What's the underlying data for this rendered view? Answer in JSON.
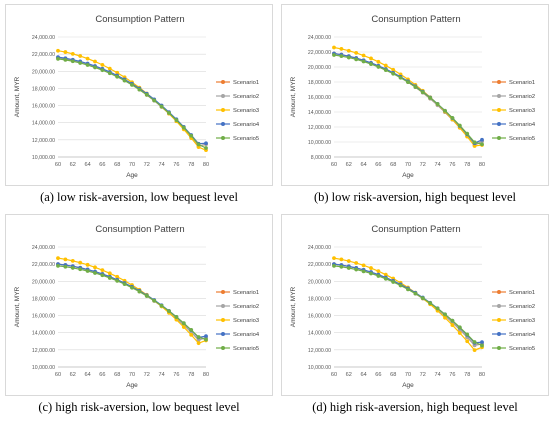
{
  "colors": {
    "Scenario1": "#ED7D31",
    "Scenario2": "#A5A5A5",
    "Scenario3": "#FFC000",
    "Scenario4": "#4472C4",
    "Scenario5": "#70AD47"
  },
  "chart_data": [
    {
      "type": "line",
      "title": "Consumption Pattern",
      "caption": "(a) low risk-aversion, low bequest level",
      "xlabel": "Age",
      "ylabel": "Amount, MYR",
      "ylim": [
        10000,
        24000
      ],
      "yticks": [
        "24,000.00",
        "22,000.00",
        "20,000.00",
        "18,000.00",
        "16,000.00",
        "14,000.00",
        "12,000.00",
        "10,000.00"
      ],
      "xticks": [
        "60",
        "62",
        "64",
        "66",
        "68",
        "70",
        "72",
        "74",
        "76",
        "78",
        "80"
      ],
      "x": [
        60,
        61,
        62,
        63,
        64,
        65,
        66,
        67,
        68,
        69,
        70,
        71,
        72,
        73,
        74,
        75,
        76,
        77,
        78,
        79,
        80
      ],
      "legend": "right",
      "series": [
        {
          "name": "Scenario1",
          "values": [
            21600,
            21470,
            21300,
            21090,
            20840,
            20550,
            20220,
            19840,
            19420,
            18950,
            18440,
            17870,
            17250,
            16580,
            15850,
            15060,
            14200,
            13290,
            12300,
            11250,
            11500
          ]
        },
        {
          "name": "Scenario2",
          "values": [
            21600,
            21470,
            21300,
            21090,
            20840,
            20550,
            20220,
            19840,
            19420,
            18950,
            18440,
            17870,
            17250,
            16580,
            15850,
            15060,
            14200,
            13290,
            12300,
            11250,
            11500
          ]
        },
        {
          "name": "Scenario3",
          "values": [
            22400,
            22240,
            22030,
            21780,
            21480,
            21140,
            20750,
            20310,
            19830,
            19300,
            18720,
            18090,
            17410,
            16680,
            15890,
            15060,
            14170,
            13220,
            12210,
            11150,
            10800
          ]
        },
        {
          "name": "Scenario4",
          "values": [
            21650,
            21520,
            21350,
            21150,
            20900,
            20620,
            20290,
            19920,
            19510,
            19050,
            18550,
            17990,
            17380,
            16720,
            16000,
            15230,
            14400,
            13510,
            12560,
            11550,
            11600
          ]
        },
        {
          "name": "Scenario5",
          "values": [
            21450,
            21330,
            21170,
            20970,
            20730,
            20450,
            20130,
            19770,
            19360,
            18910,
            18410,
            17860,
            17260,
            16600,
            15890,
            15130,
            14300,
            13420,
            12480,
            11460,
            11050
          ]
        }
      ]
    },
    {
      "type": "line",
      "title": "Consumption Pattern",
      "caption": "(b) low risk-aversion, high bequest level",
      "xlabel": "Age",
      "ylabel": "Amount, MYR",
      "ylim": [
        8000,
        24000
      ],
      "yticks": [
        "24,000.00",
        "22,000.00",
        "20,000.00",
        "18,000.00",
        "16,000.00",
        "14,000.00",
        "12,000.00",
        "10,000.00",
        "8,000.00"
      ],
      "xticks": [
        "60",
        "62",
        "64",
        "66",
        "68",
        "70",
        "72",
        "74",
        "76",
        "78",
        "80"
      ],
      "x": [
        60,
        61,
        62,
        63,
        64,
        65,
        66,
        67,
        68,
        69,
        70,
        71,
        72,
        73,
        74,
        75,
        76,
        77,
        78,
        79,
        80
      ],
      "legend": "right",
      "series": [
        {
          "name": "Scenario1",
          "values": [
            21800,
            21640,
            21430,
            21180,
            20880,
            20530,
            20130,
            19680,
            19180,
            18620,
            18000,
            17320,
            16580,
            15780,
            14910,
            13980,
            12980,
            11910,
            10780,
            9570,
            10100
          ]
        },
        {
          "name": "Scenario2",
          "values": [
            21800,
            21640,
            21430,
            21180,
            20880,
            20530,
            20130,
            19680,
            19180,
            18620,
            18000,
            17320,
            16580,
            15780,
            14910,
            13980,
            12980,
            11910,
            10780,
            9570,
            10100
          ]
        },
        {
          "name": "Scenario3",
          "values": [
            22600,
            22410,
            22170,
            21880,
            21530,
            21140,
            20690,
            20190,
            19630,
            19020,
            18350,
            17620,
            16830,
            15970,
            15050,
            14070,
            13020,
            11900,
            10720,
            9470,
            9600
          ]
        },
        {
          "name": "Scenario4",
          "values": [
            21800,
            21640,
            21440,
            21190,
            20890,
            20550,
            20160,
            19720,
            19230,
            18690,
            18090,
            17430,
            16710,
            15930,
            15080,
            14170,
            13190,
            12140,
            11020,
            9840,
            10300
          ]
        },
        {
          "name": "Scenario5",
          "values": [
            21600,
            21450,
            21260,
            21020,
            20730,
            20390,
            20010,
            19580,
            19100,
            18570,
            17980,
            17340,
            16640,
            15880,
            15060,
            14170,
            13220,
            12200,
            11110,
            9960,
            9700
          ]
        }
      ]
    },
    {
      "type": "line",
      "title": "Consumption Pattern",
      "caption": "(c) high risk-aversion, low bequest level",
      "xlabel": "Age",
      "ylabel": "Amount, MYR",
      "ylim": [
        10000,
        24000
      ],
      "yticks": [
        "24,000.00",
        "22,000.00",
        "20,000.00",
        "18,000.00",
        "16,000.00",
        "14,000.00",
        "12,000.00",
        "10,000.00"
      ],
      "xticks": [
        "60",
        "62",
        "64",
        "66",
        "68",
        "70",
        "72",
        "74",
        "76",
        "78",
        "80"
      ],
      "x": [
        60,
        61,
        62,
        63,
        64,
        65,
        66,
        67,
        68,
        69,
        70,
        71,
        72,
        73,
        74,
        75,
        76,
        77,
        78,
        79,
        80
      ],
      "legend": "right",
      "series": [
        {
          "name": "Scenario1",
          "values": [
            22000,
            21890,
            21750,
            21580,
            21370,
            21120,
            20840,
            20520,
            20160,
            19760,
            19320,
            18830,
            18300,
            17720,
            17090,
            16410,
            15680,
            14900,
            14060,
            13170,
            13400
          ]
        },
        {
          "name": "Scenario2",
          "values": [
            22000,
            21890,
            21750,
            21580,
            21370,
            21120,
            20840,
            20520,
            20160,
            19760,
            19320,
            18830,
            18300,
            17720,
            17090,
            16410,
            15680,
            14900,
            14060,
            13170,
            13400
          ]
        },
        {
          "name": "Scenario3",
          "values": [
            22700,
            22560,
            22380,
            22170,
            21920,
            21630,
            21300,
            20930,
            20520,
            20060,
            19560,
            19010,
            18420,
            17770,
            17070,
            16320,
            15520,
            14660,
            13750,
            12780,
            13100
          ]
        },
        {
          "name": "Scenario4",
          "values": [
            22000,
            21890,
            21750,
            21580,
            21370,
            21130,
            20850,
            20530,
            20180,
            19790,
            19360,
            18890,
            18370,
            17810,
            17200,
            16550,
            15850,
            15100,
            14300,
            13450,
            13600
          ]
        },
        {
          "name": "Scenario5",
          "values": [
            21800,
            21700,
            21560,
            21400,
            21200,
            20970,
            20700,
            20390,
            20050,
            19670,
            19250,
            18790,
            18290,
            17740,
            17150,
            16520,
            15840,
            15110,
            14330,
            13500,
            13200
          ]
        }
      ]
    },
    {
      "type": "line",
      "title": "Consumption Pattern",
      "caption": "(d) high risk-aversion, high bequest level",
      "xlabel": "Age",
      "ylabel": "Amount, MYR",
      "ylim": [
        10000,
        24000
      ],
      "yticks": [
        "24,000.00",
        "22,000.00",
        "20,000.00",
        "18,000.00",
        "16,000.00",
        "14,000.00",
        "12,000.00",
        "10,000.00"
      ],
      "xticks": [
        "60",
        "62",
        "64",
        "66",
        "68",
        "70",
        "72",
        "74",
        "76",
        "78",
        "80"
      ],
      "x": [
        60,
        61,
        62,
        63,
        64,
        65,
        66,
        67,
        68,
        69,
        70,
        71,
        72,
        73,
        74,
        75,
        76,
        77,
        78,
        79,
        80
      ],
      "legend": "right",
      "series": [
        {
          "name": "Scenario1",
          "values": [
            22000,
            21880,
            21730,
            21540,
            21310,
            21040,
            20730,
            20380,
            19990,
            19560,
            19080,
            18560,
            17990,
            17370,
            16700,
            15980,
            15200,
            14370,
            13480,
            12540,
            12700
          ]
        },
        {
          "name": "Scenario2",
          "values": [
            22000,
            21880,
            21730,
            21540,
            21310,
            21040,
            20730,
            20380,
            19990,
            19560,
            19080,
            18560,
            17990,
            17370,
            16700,
            15980,
            15200,
            14370,
            13480,
            12540,
            12700
          ]
        },
        {
          "name": "Scenario3",
          "values": [
            22700,
            22550,
            22360,
            22130,
            21860,
            21540,
            21180,
            20770,
            20320,
            19820,
            19270,
            18670,
            18020,
            17320,
            16560,
            15750,
            14890,
            13970,
            13000,
            11970,
            12300
          ]
        },
        {
          "name": "Scenario4",
          "values": [
            22000,
            21890,
            21740,
            21560,
            21340,
            21080,
            20780,
            20440,
            20060,
            19630,
            19170,
            18660,
            18100,
            17500,
            16850,
            16150,
            15400,
            14590,
            13730,
            12820,
            12900
          ]
        },
        {
          "name": "Scenario5",
          "values": [
            21800,
            21690,
            21550,
            21370,
            21160,
            20910,
            20620,
            20290,
            19920,
            19510,
            19060,
            18570,
            18030,
            17450,
            16820,
            16140,
            15410,
            14630,
            13800,
            12910,
            12500
          ]
        }
      ]
    }
  ]
}
